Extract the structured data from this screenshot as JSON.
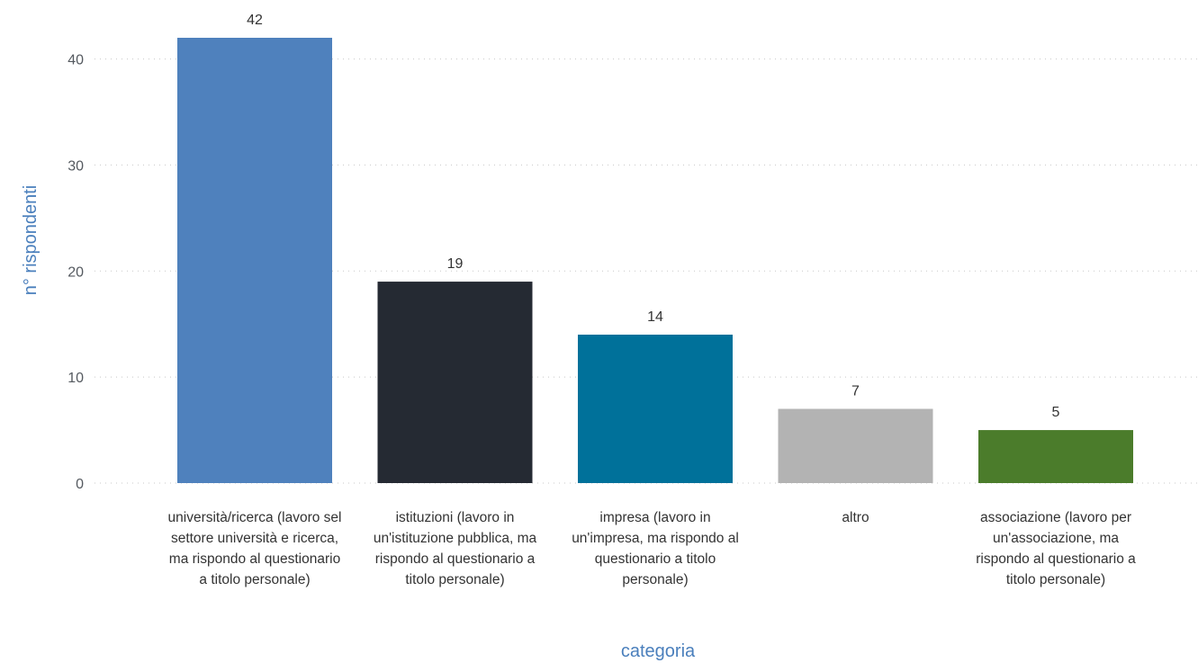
{
  "chart_data": {
    "type": "bar",
    "categories": [
      "università/ricerca (lavoro sel settore università e ricerca, ma rispondo al questionario a titolo personale)",
      "istituzioni (lavoro in un'istituzione pubblica, ma rispondo al questionario a titolo personale)",
      "impresa (lavoro in un'impresa, ma rispondo al questionario a titolo personale)",
      "altro",
      "associazione (lavoro per un'associazione, ma rispondo al questionario a titolo personale)"
    ],
    "values": [
      42,
      19,
      14,
      7,
      5
    ],
    "colors": [
      "#4f81bd",
      "#252a33",
      "#00719a",
      "#b3b3b3",
      "#4b7c2b"
    ],
    "xlabel": "categoria",
    "ylabel": "n° rispondenti",
    "ylim": [
      0,
      42
    ],
    "yticks": [
      0,
      10,
      20,
      30,
      40
    ],
    "grid": true,
    "data_labels": true
  }
}
